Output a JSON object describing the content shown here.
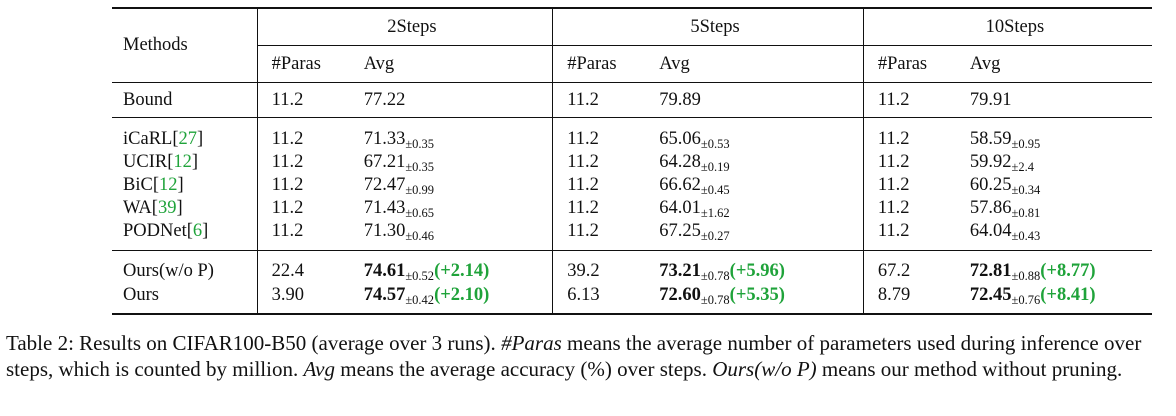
{
  "table": {
    "header": {
      "methods": "Methods",
      "groups": [
        "2Steps",
        "5Steps",
        "10Steps"
      ],
      "sub": [
        "#Paras",
        "Avg"
      ]
    },
    "bound": {
      "method": "Bound",
      "cells": [
        [
          "11.2",
          "77.22"
        ],
        [
          "11.2",
          "79.89"
        ],
        [
          "11.2",
          "79.91"
        ]
      ]
    },
    "baselines": [
      {
        "name": "iCaRL",
        "cite": "27",
        "cells": [
          [
            "11.2",
            "71.33",
            "0.35"
          ],
          [
            "11.2",
            "65.06",
            "0.53"
          ],
          [
            "11.2",
            "58.59",
            "0.95"
          ]
        ]
      },
      {
        "name": "UCIR",
        "cite": "12",
        "cells": [
          [
            "11.2",
            "67.21",
            "0.35"
          ],
          [
            "11.2",
            "64.28",
            "0.19"
          ],
          [
            "11.2",
            "59.92",
            "2.4"
          ]
        ]
      },
      {
        "name": "BiC",
        "cite": "12",
        "cells": [
          [
            "11.2",
            "72.47",
            "0.99"
          ],
          [
            "11.2",
            "66.62",
            "0.45"
          ],
          [
            "11.2",
            "60.25",
            "0.34"
          ]
        ]
      },
      {
        "name": "WA",
        "cite": "39",
        "cells": [
          [
            "11.2",
            "71.43",
            "0.65"
          ],
          [
            "11.2",
            "64.01",
            "1.62"
          ],
          [
            "11.2",
            "57.86",
            "0.81"
          ]
        ]
      },
      {
        "name": "PODNet",
        "cite": "6",
        "cells": [
          [
            "11.2",
            "71.30",
            "0.46"
          ],
          [
            "11.2",
            "67.25",
            "0.27"
          ],
          [
            "11.2",
            "64.04",
            "0.43"
          ]
        ]
      }
    ],
    "ours": [
      {
        "name": "Ours(w/o P)",
        "cells": [
          [
            "22.4",
            "74.61",
            "0.52",
            "(+2.14)"
          ],
          [
            "39.2",
            "73.21",
            "0.78",
            "(+5.96)"
          ],
          [
            "67.2",
            "72.81",
            "0.88",
            "(+8.77)"
          ]
        ]
      },
      {
        "name": "Ours",
        "cells": [
          [
            "3.90",
            "74.57",
            "0.42",
            "(+2.10)"
          ],
          [
            "6.13",
            "72.60",
            "0.78",
            "(+5.35)"
          ],
          [
            "8.79",
            "72.45",
            "0.76",
            "(+8.41)"
          ]
        ]
      }
    ],
    "pm": "±",
    "lbr": "[",
    "rbr": "]"
  },
  "caption": {
    "p1": "Table 2: Results on CIFAR100-B50 (average over 3 runs). ",
    "paras": "#Paras",
    "p2": " means the average number of parameters used during inference over steps, which is counted by million. ",
    "avg": "Avg",
    "p3": " means the average accuracy (%) over steps. ",
    "ours": "Ours(w/o P)",
    "p4": " means our method without pruning."
  },
  "colors": {
    "gain": "#1fa33a",
    "cite": "#1fa33a",
    "text": "#111111"
  }
}
